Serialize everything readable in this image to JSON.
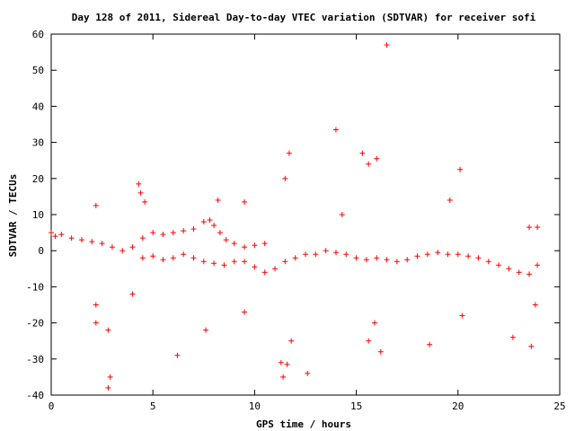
{
  "chart_data": {
    "type": "scatter",
    "title": "Day 128 of 2011, Sidereal Day-to-day VTEC variation (SDTVAR) for receiver sofi",
    "xlabel": "GPS time / hours",
    "ylabel": "SDTVAR / TECUs",
    "xlim": [
      0,
      25
    ],
    "ylim": [
      -40,
      60
    ],
    "xticks": [
      "0",
      "5",
      "10",
      "15",
      "20",
      "25"
    ],
    "yticks": [
      "-40",
      "-30",
      "-20",
      "-10",
      "0",
      "10",
      "20",
      "30",
      "40",
      "50",
      "60"
    ],
    "grid": false,
    "legend": "none",
    "marker": "plus",
    "color": "#ff0000",
    "series": [
      {
        "values": [
          [
            0.0,
            5.0
          ],
          [
            0.2,
            4.0
          ],
          [
            0.5,
            4.5
          ],
          [
            1.0,
            3.5
          ],
          [
            1.5,
            3.0
          ],
          [
            2.0,
            2.5
          ],
          [
            2.5,
            2.0
          ],
          [
            3.0,
            1.0
          ],
          [
            3.5,
            0.0
          ],
          [
            4.0,
            1.0
          ],
          [
            4.5,
            3.5
          ],
          [
            5.0,
            5.0
          ],
          [
            5.5,
            4.5
          ],
          [
            6.0,
            5.0
          ],
          [
            6.5,
            5.5
          ],
          [
            7.0,
            6.0
          ],
          [
            7.5,
            8.0
          ],
          [
            7.8,
            8.5
          ],
          [
            8.0,
            7.0
          ],
          [
            8.3,
            5.0
          ],
          [
            8.6,
            3.0
          ],
          [
            9.0,
            2.0
          ],
          [
            9.5,
            1.0
          ],
          [
            10.0,
            1.5
          ],
          [
            10.5,
            2.0
          ],
          [
            4.5,
            -2.0
          ],
          [
            5.0,
            -1.5
          ],
          [
            5.5,
            -2.5
          ],
          [
            6.0,
            -2.0
          ],
          [
            6.5,
            -1.0
          ],
          [
            7.0,
            -2.0
          ],
          [
            7.5,
            -3.0
          ],
          [
            8.0,
            -3.5
          ],
          [
            8.5,
            -4.0
          ],
          [
            9.0,
            -3.0
          ],
          [
            9.5,
            -3.0
          ],
          [
            10.0,
            -4.5
          ],
          [
            10.5,
            -6.0
          ],
          [
            11.0,
            -5.0
          ],
          [
            11.5,
            -3.0
          ],
          [
            12.0,
            -2.0
          ],
          [
            12.5,
            -1.0
          ],
          [
            13.0,
            -1.0
          ],
          [
            13.5,
            0.0
          ],
          [
            14.0,
            -0.5
          ],
          [
            14.5,
            -1.0
          ],
          [
            15.0,
            -2.0
          ],
          [
            15.5,
            -2.5
          ],
          [
            16.0,
            -2.0
          ],
          [
            16.5,
            -2.5
          ],
          [
            17.0,
            -3.0
          ],
          [
            17.5,
            -2.5
          ],
          [
            18.0,
            -1.5
          ],
          [
            18.5,
            -1.0
          ],
          [
            19.0,
            -0.5
          ],
          [
            19.5,
            -1.0
          ],
          [
            20.0,
            -1.0
          ],
          [
            20.5,
            -1.5
          ],
          [
            21.0,
            -2.0
          ],
          [
            21.5,
            -3.0
          ],
          [
            22.0,
            -4.0
          ],
          [
            22.5,
            -5.0
          ],
          [
            23.0,
            -6.0
          ],
          [
            23.5,
            -6.5
          ],
          [
            23.9,
            -4.0
          ],
          [
            2.2,
            12.5
          ],
          [
            2.2,
            -15.0
          ],
          [
            2.2,
            -20.0
          ],
          [
            2.8,
            -22.0
          ],
          [
            2.8,
            -38.0
          ],
          [
            2.9,
            -35.0
          ],
          [
            4.0,
            -12.0
          ],
          [
            4.3,
            18.5
          ],
          [
            4.4,
            16.0
          ],
          [
            4.6,
            13.5
          ],
          [
            6.2,
            -29.0
          ],
          [
            7.6,
            -22.0
          ],
          [
            9.5,
            -17.0
          ],
          [
            9.5,
            13.5
          ],
          [
            8.2,
            14.0
          ],
          [
            11.4,
            -35.0
          ],
          [
            11.5,
            20.0
          ],
          [
            11.7,
            27.0
          ],
          [
            11.3,
            -31.0
          ],
          [
            11.6,
            -31.5
          ],
          [
            11.8,
            -25.0
          ],
          [
            12.6,
            -34.0
          ],
          [
            14.0,
            33.5
          ],
          [
            14.3,
            10.0
          ],
          [
            15.3,
            27.0
          ],
          [
            15.6,
            24.0
          ],
          [
            16.0,
            25.5
          ],
          [
            16.5,
            57.0
          ],
          [
            16.2,
            -28.0
          ],
          [
            15.6,
            -25.0
          ],
          [
            15.9,
            -20.0
          ],
          [
            18.6,
            -26.0
          ],
          [
            19.6,
            14.0
          ],
          [
            20.1,
            22.5
          ],
          [
            20.2,
            -18.0
          ],
          [
            22.7,
            -24.0
          ],
          [
            23.6,
            -26.5
          ],
          [
            23.8,
            -15.0
          ],
          [
            23.5,
            6.5
          ],
          [
            23.9,
            6.5
          ]
        ]
      }
    ]
  }
}
